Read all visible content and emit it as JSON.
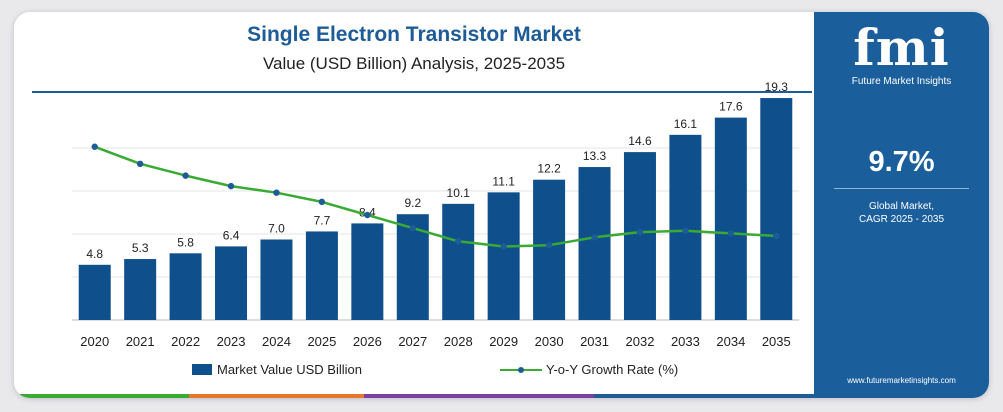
{
  "header": {
    "title": "Single Electron Transistor Market",
    "subtitle": "Value (USD Billion) Analysis, 2025-2035"
  },
  "legend": {
    "bar_label": "Market Value USD Billion",
    "line_label": "Y-o-Y Growth Rate (%)"
  },
  "sidebar": {
    "logo_text": "fmi",
    "logo_subtext": "Future Market Insights",
    "cagr_value": "9.7%",
    "cagr_line1": "Global Market,",
    "cagr_line2": "CAGR 2025 - 2035",
    "website": "www.futuremarketinsights.com"
  },
  "colors": {
    "bar": "#0f4f8b",
    "line": "#3aaa35",
    "title": "#1d5c96",
    "sidebar": "#1b5e9c",
    "bottom_bar": [
      "#3aaa35",
      "#e8772e",
      "#7a3fa0",
      "#1d5c96"
    ]
  },
  "chart_data": {
    "type": "bar",
    "title": "Single Electron Transistor Market",
    "subtitle": "Value (USD Billion) Analysis, 2025-2035",
    "categories": [
      "2020",
      "2021",
      "2022",
      "2023",
      "2024",
      "2025",
      "2026",
      "2027",
      "2028",
      "2029",
      "2030",
      "2031",
      "2032",
      "2033",
      "2034",
      "2035"
    ],
    "series": [
      {
        "name": "Market Value USD Billion",
        "type": "bar",
        "values": [
          4.8,
          5.3,
          5.8,
          6.4,
          7.0,
          7.7,
          8.4,
          9.2,
          10.1,
          11.1,
          12.2,
          13.3,
          14.6,
          16.1,
          17.6,
          19.3
        ],
        "labels": [
          "4.8",
          "5.3",
          "5.8",
          "6.4",
          "7.0",
          "7.7",
          "8.4",
          "9.2",
          "10.1",
          "11.1",
          "12.2",
          "13.3",
          "14.6",
          "16.1",
          "17.6",
          "19.3"
        ]
      },
      {
        "name": "Y-o-Y Growth Rate (%)",
        "type": "line",
        "values": [
          13.2,
          11.9,
          11.0,
          10.2,
          9.7,
          9.0,
          8.0,
          7.0,
          6.0,
          5.6,
          5.7,
          6.3,
          6.7,
          6.8,
          6.6,
          6.4
        ]
      }
    ],
    "ylim": [
      0,
      20
    ],
    "y2lim": [
      0,
      16
    ],
    "grid": true,
    "legend_position": "bottom"
  }
}
